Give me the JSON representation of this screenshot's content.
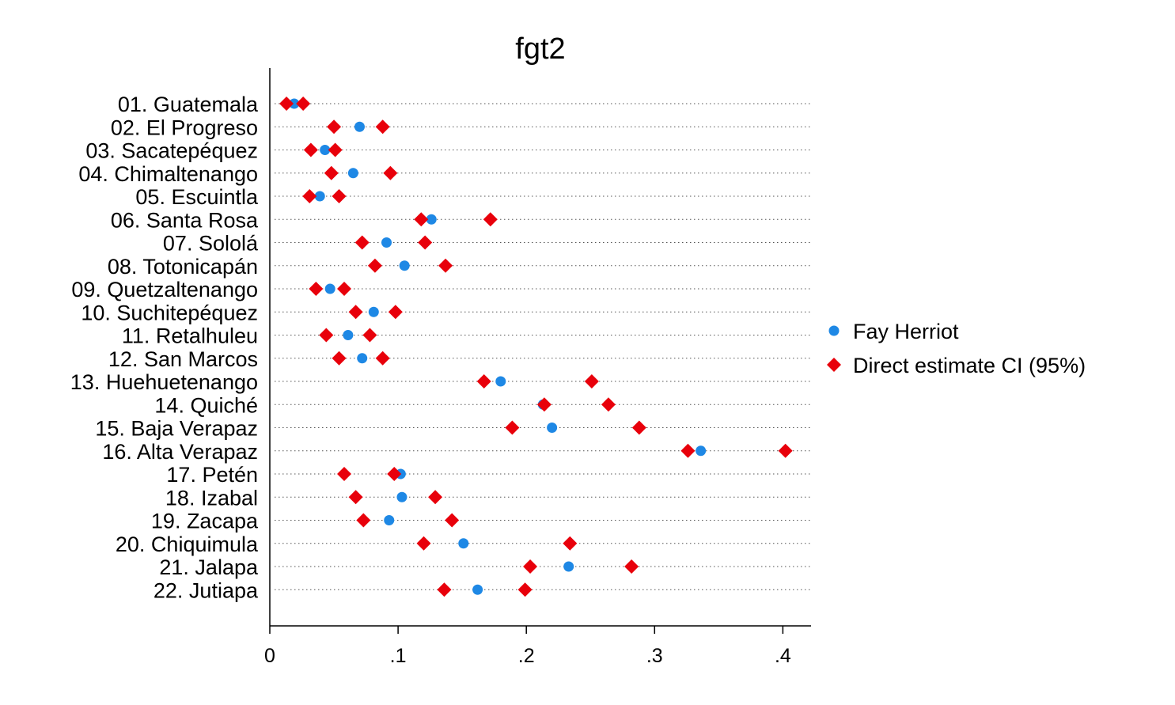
{
  "chart_data": {
    "type": "scatter",
    "title": "fgt2",
    "xlabel": "",
    "ylabel": "",
    "xlim": [
      0,
      0.42
    ],
    "x_ticks": [
      {
        "value": 0,
        "label": "0"
      },
      {
        "value": 0.1,
        "label": ".1"
      },
      {
        "value": 0.2,
        "label": ".2"
      },
      {
        "value": 0.3,
        "label": ".3"
      },
      {
        "value": 0.4,
        "label": ".4"
      }
    ],
    "grid": "horizontal dotted lines at each category",
    "legend_position": "right",
    "categories": [
      "01. Guatemala",
      "02. El Progreso",
      "03. Sacatepéquez",
      "04. Chimaltenango",
      "05. Escuintla",
      "06. Santa Rosa",
      "07. Sololá",
      "08. Totonicapán",
      "09. Quetzaltenango",
      "10. Suchitepéquez",
      "11. Retalhuleu",
      "12. San Marcos",
      "13. Huehuetenango",
      "14. Quiché",
      "15. Baja Verapaz",
      "16. Alta Verapaz",
      "17. Petén",
      "18. Izabal",
      "19. Zacapa",
      "20. Chiquimula",
      "21. Jalapa",
      "22. Jutiapa"
    ],
    "series": [
      {
        "name": "Fay Herriot",
        "marker": "circle",
        "color": "#1E88E5",
        "values": [
          0.019,
          0.07,
          0.043,
          0.065,
          0.039,
          0.126,
          0.091,
          0.105,
          0.047,
          0.081,
          0.061,
          0.072,
          0.18,
          0.213,
          0.22,
          0.336,
          0.102,
          0.103,
          0.093,
          0.151,
          0.233,
          0.162
        ]
      },
      {
        "name": "Direct estimate CI (95%)",
        "marker": "diamond",
        "color": "#E8000B",
        "lower": [
          0.013,
          0.05,
          0.032,
          0.048,
          0.031,
          0.118,
          0.072,
          0.082,
          0.036,
          0.067,
          0.044,
          0.054,
          0.167,
          0.214,
          0.189,
          0.326,
          0.058,
          0.067,
          0.073,
          0.12,
          0.203,
          0.136
        ],
        "upper": [
          0.026,
          0.088,
          0.051,
          0.094,
          0.054,
          0.172,
          0.121,
          0.137,
          0.058,
          0.098,
          0.078,
          0.088,
          0.251,
          0.264,
          0.288,
          0.402,
          0.097,
          0.129,
          0.142,
          0.234,
          0.282,
          0.199
        ]
      }
    ]
  }
}
